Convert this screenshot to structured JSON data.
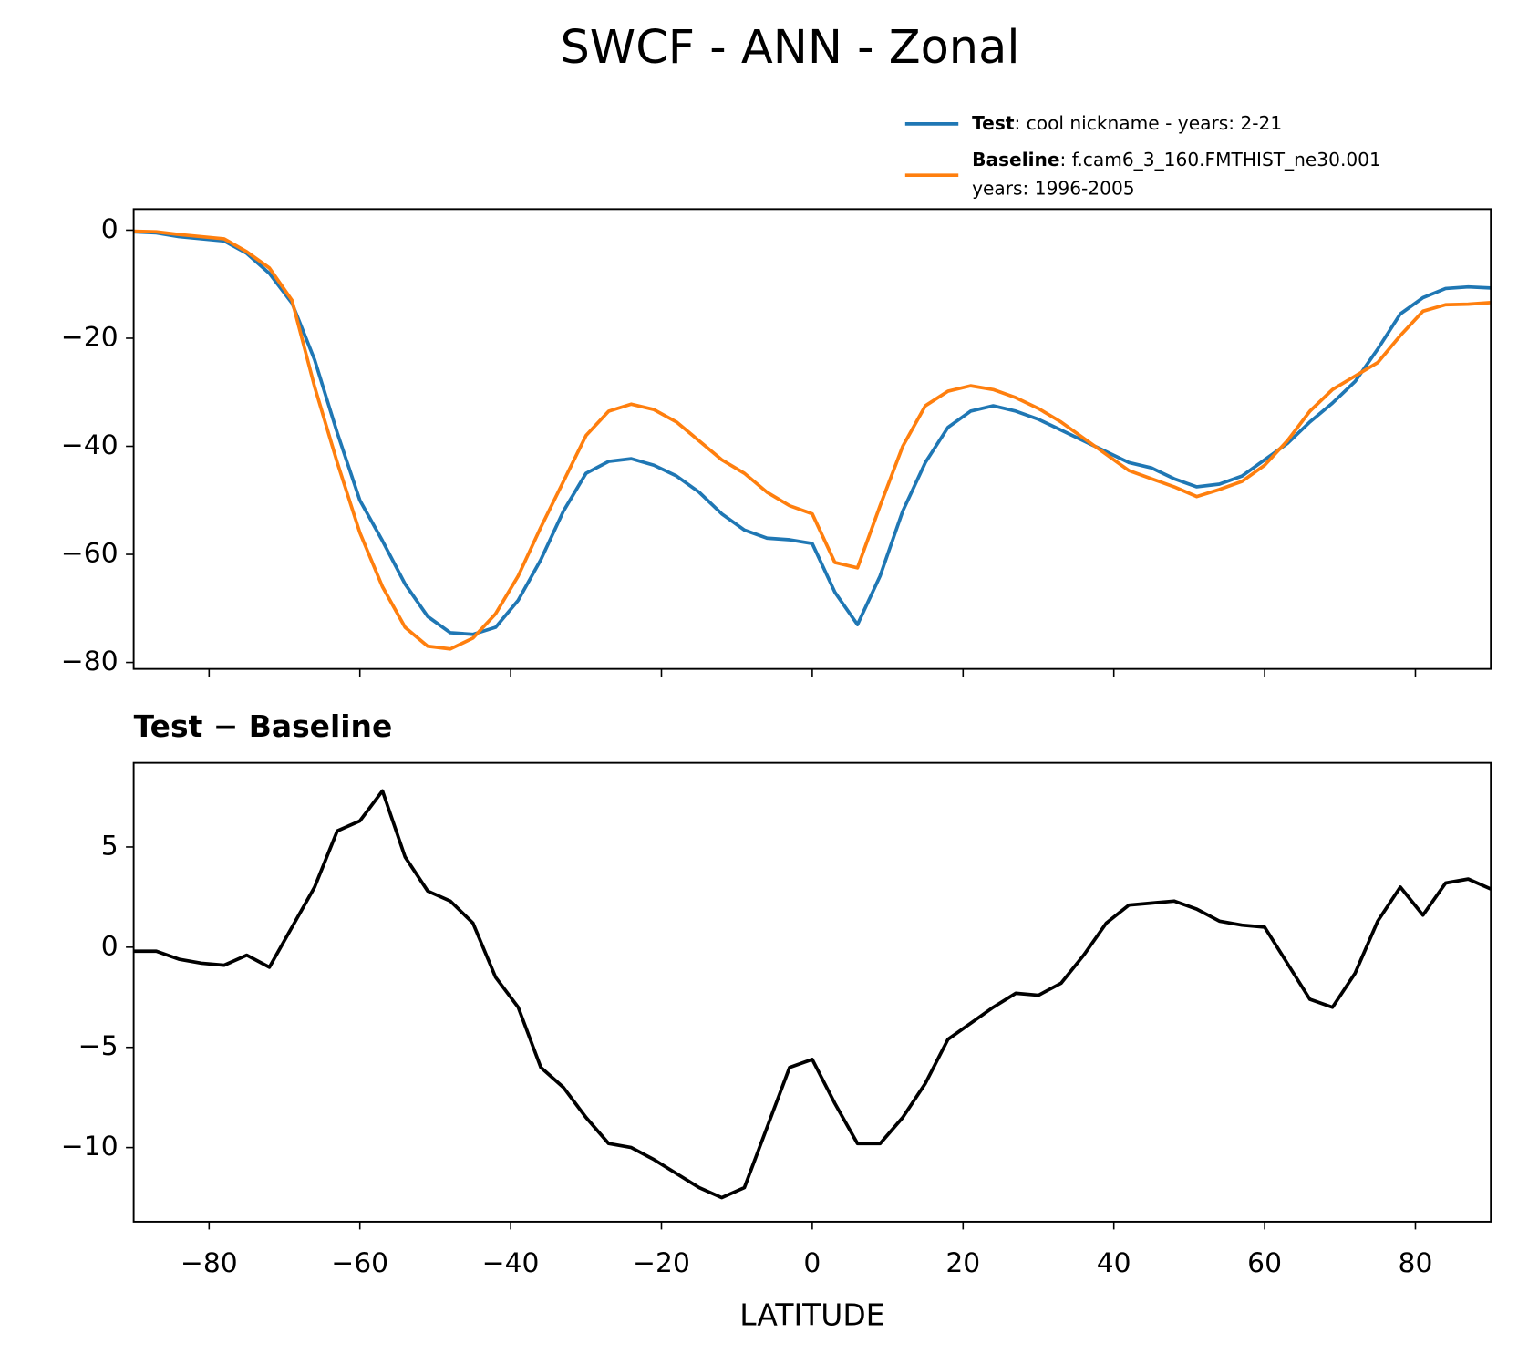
{
  "title": "SWCF - ANN - Zonal",
  "chart_data": [
    {
      "type": "line",
      "x": [
        -90,
        -87,
        -84,
        -81,
        -78,
        -75,
        -72,
        -69,
        -66,
        -63,
        -60,
        -57,
        -54,
        -51,
        -48,
        -45,
        -42,
        -39,
        -36,
        -33,
        -30,
        -27,
        -24,
        -21,
        -18,
        -15,
        -12,
        -9,
        -6,
        -3,
        0,
        3,
        6,
        9,
        12,
        15,
        18,
        21,
        24,
        27,
        30,
        33,
        36,
        39,
        42,
        45,
        48,
        51,
        54,
        57,
        60,
        63,
        66,
        69,
        72,
        75,
        78,
        81,
        84,
        87,
        90
      ],
      "series": [
        {
          "name": "Test",
          "label_detail": [
            ": cool nickname - years: 2-21"
          ],
          "color": "#1f77b4",
          "values": [
            -0.3,
            -0.5,
            -1.2,
            -1.6,
            -2.0,
            -4.3,
            -8.0,
            -13.5,
            -24,
            -37.5,
            -50,
            -57.5,
            -65.5,
            -71.5,
            -74.5,
            -74.8,
            -73.5,
            -68.5,
            -61,
            -52,
            -45,
            -42.8,
            -42.3,
            -43.5,
            -45.5,
            -48.5,
            -52.5,
            -55.5,
            -57,
            -57.3,
            -58,
            -67,
            -73,
            -64,
            -52,
            -43,
            -36.5,
            -33.5,
            -32.5,
            -33.5,
            -35,
            -37,
            -39,
            -41,
            -43,
            -44,
            -46,
            -47.5,
            -47,
            -45.5,
            -42.5,
            -39.5,
            -35.5,
            -32,
            -28,
            -22,
            -15.5,
            -12.5,
            -10.8,
            -10.5,
            -10.7
          ]
        },
        {
          "name": "Baseline",
          "label_detail": [
            ": f.cam6_3_160.FMTHIST_ne30.001",
            "years: 1996-2005"
          ],
          "color": "#ff7f0e",
          "values": [
            -0.2,
            -0.3,
            -0.8,
            -1.2,
            -1.6,
            -4.0,
            -7.0,
            -13,
            -29,
            -43,
            -56,
            -66,
            -73.5,
            -77,
            -77.5,
            -75.5,
            -71,
            -64,
            -55,
            -46.5,
            -38,
            -33.5,
            -32.2,
            -33.2,
            -35.5,
            -39,
            -42.5,
            -45,
            -48.5,
            -51,
            -52.5,
            -61.5,
            -62.5,
            -51,
            -40,
            -32.5,
            -29.8,
            -28.8,
            -29.5,
            -31,
            -33,
            -35.5,
            -38.5,
            -41.5,
            -44.5,
            -46,
            -47.5,
            -49.3,
            -48,
            -46.5,
            -43.5,
            -39,
            -33.5,
            -29.5,
            -27,
            -24.5,
            -19.5,
            -15,
            -13.8,
            -13.7,
            -13.4
          ]
        }
      ],
      "xlim": [
        -90,
        90
      ],
      "xticks": [
        -80,
        -60,
        -40,
        -20,
        0,
        20,
        40,
        60,
        80
      ],
      "ylim": [
        -81.2,
        3.9
      ],
      "yticks": [
        0,
        {
          "value": -20,
          "label": "−20"
        },
        {
          "value": -40,
          "label": "−40"
        },
        {
          "value": -60,
          "label": "−60"
        },
        {
          "value": -80,
          "label": "−80"
        }
      ]
    },
    {
      "type": "line",
      "title": "Test − Baseline",
      "xlabel": "LATITUDE",
      "x": [
        -90,
        -87,
        -84,
        -81,
        -78,
        -75,
        -72,
        -69,
        -66,
        -63,
        -60,
        -57,
        -54,
        -51,
        -48,
        -45,
        -42,
        -39,
        -36,
        -33,
        -30,
        -27,
        -24,
        -21,
        -18,
        -15,
        -12,
        -9,
        -6,
        -3,
        0,
        3,
        6,
        9,
        12,
        15,
        18,
        21,
        24,
        27,
        30,
        33,
        36,
        39,
        42,
        45,
        48,
        51,
        54,
        57,
        60,
        63,
        66,
        69,
        72,
        75,
        78,
        81,
        84,
        87,
        90
      ],
      "series": [
        {
          "color": "#000000",
          "values": [
            -0.2,
            -0.2,
            -0.6,
            -0.8,
            -0.9,
            -0.4,
            -1.0,
            1.0,
            3.0,
            5.8,
            6.3,
            7.8,
            4.5,
            2.8,
            2.3,
            1.2,
            -1.5,
            -3.0,
            -6.0,
            -7.0,
            -8.5,
            -9.8,
            -10.0,
            -10.6,
            -11.3,
            -12.0,
            -12.5,
            -12.0,
            -9.0,
            -6.0,
            -5.6,
            -7.8,
            -9.8,
            -9.8,
            -8.5,
            -6.8,
            -4.6,
            -3.8,
            -3.0,
            -2.3,
            -2.4,
            -1.8,
            -0.4,
            1.2,
            2.1,
            2.2,
            2.3,
            1.9,
            1.3,
            1.1,
            1.0,
            -0.8,
            -2.6,
            -3.0,
            -1.3,
            1.3,
            3.0,
            1.6,
            3.2,
            3.4,
            2.9
          ]
        }
      ],
      "xlim": [
        -90,
        90
      ],
      "xticks": [
        {
          "value": -80,
          "label": "−80"
        },
        {
          "value": -60,
          "label": "−60"
        },
        {
          "value": -40,
          "label": "−40"
        },
        {
          "value": -20,
          "label": "−20"
        },
        0,
        20,
        40,
        60,
        80
      ],
      "ylim": [
        -13.7,
        9.2
      ],
      "yticks": [
        5,
        0,
        {
          "value": -5,
          "label": "−5"
        },
        {
          "value": -10,
          "label": "−10"
        }
      ]
    }
  ]
}
